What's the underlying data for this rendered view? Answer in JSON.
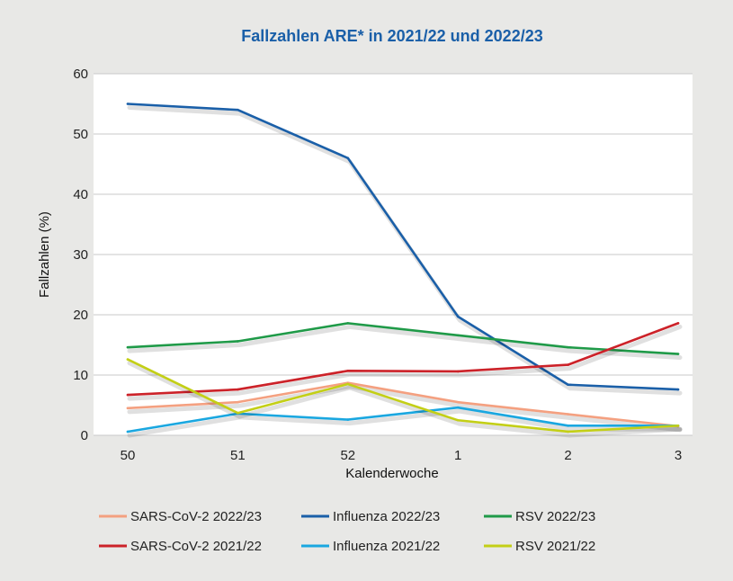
{
  "chart_data": {
    "type": "line",
    "title": "Fallzahlen ARE* in 2021/22 und 2022/23",
    "xlabel": "Kalenderwoche",
    "ylabel": "Fallzahlen (%)",
    "categories": [
      "50",
      "51",
      "52",
      "1",
      "2",
      "3"
    ],
    "ylim": [
      0,
      60
    ],
    "yticks": [
      "0",
      "10",
      "20",
      "30",
      "40",
      "50",
      "60"
    ],
    "grid": true,
    "legend_position": "bottom",
    "series": [
      {
        "name": "SARS-CoV-2 2022/23",
        "color": "#f4a080",
        "values": [
          4.5,
          5.5,
          8.7,
          5.5,
          3.5,
          1.5
        ]
      },
      {
        "name": "Influenza 2022/23",
        "color": "#1a5fa8",
        "values": [
          55,
          54,
          46,
          19.7,
          8.4,
          7.6
        ]
      },
      {
        "name": "RSV 2022/23",
        "color": "#1f9a48",
        "values": [
          14.6,
          15.6,
          18.6,
          16.6,
          14.6,
          13.5
        ]
      },
      {
        "name": "SARS-CoV-2 2021/22",
        "color": "#cc2229",
        "values": [
          6.7,
          7.6,
          10.7,
          10.6,
          11.7,
          18.6
        ]
      },
      {
        "name": "Influenza 2021/22",
        "color": "#1aa7e0",
        "values": [
          0.6,
          3.6,
          2.6,
          4.6,
          1.6,
          1.6
        ]
      },
      {
        "name": "RSV 2021/22",
        "color": "#c3cf16",
        "values": [
          12.6,
          3.7,
          8.5,
          2.5,
          0.6,
          1.6
        ]
      }
    ]
  }
}
